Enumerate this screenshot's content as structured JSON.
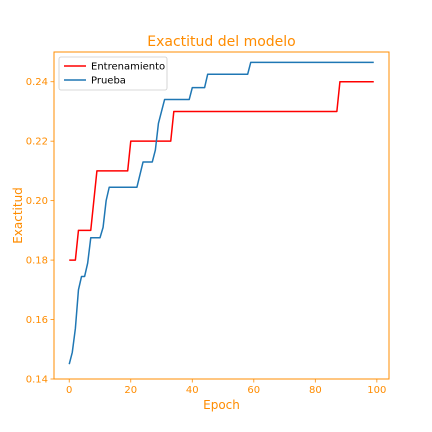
{
  "chart_data": {
    "type": "line",
    "title": "Exactitud del modelo",
    "xlabel": "Epoch",
    "ylabel": "Exactitud",
    "xlim": [
      -4.95,
      103.95
    ],
    "ylim": [
      0.14,
      0.25
    ],
    "xticks": [
      0,
      20,
      40,
      60,
      80,
      100
    ],
    "yticks": [
      0.14,
      0.16,
      0.18,
      0.2,
      0.22,
      0.24
    ],
    "ytick_labels": [
      "0.14",
      "0.16",
      "0.18",
      "0.20",
      "0.22",
      "0.24"
    ],
    "legend_position": "top-left",
    "accent_color": "#ff8c00",
    "series": [
      {
        "name": "Entrenamiento",
        "color": "#ff0000",
        "points": [
          [
            0,
            0.18
          ],
          [
            2,
            0.18
          ],
          [
            3,
            0.19
          ],
          [
            7,
            0.19
          ],
          [
            9,
            0.21
          ],
          [
            19,
            0.21
          ],
          [
            20,
            0.22
          ],
          [
            33,
            0.22
          ],
          [
            34,
            0.23
          ],
          [
            87,
            0.23
          ],
          [
            88,
            0.24
          ],
          [
            99,
            0.24
          ]
        ]
      },
      {
        "name": "Prueba",
        "color": "#1f77b4",
        "points": [
          [
            0,
            0.145
          ],
          [
            1,
            0.149
          ],
          [
            2,
            0.157
          ],
          [
            3,
            0.17
          ],
          [
            4,
            0.1745
          ],
          [
            5,
            0.1745
          ],
          [
            6,
            0.179
          ],
          [
            7,
            0.1875
          ],
          [
            10,
            0.1875
          ],
          [
            11,
            0.191
          ],
          [
            12,
            0.2
          ],
          [
            13,
            0.2045
          ],
          [
            22,
            0.2045
          ],
          [
            24,
            0.213
          ],
          [
            27,
            0.213
          ],
          [
            28,
            0.217
          ],
          [
            29,
            0.226
          ],
          [
            30,
            0.23
          ],
          [
            31,
            0.234
          ],
          [
            39,
            0.234
          ],
          [
            40,
            0.238
          ],
          [
            44,
            0.238
          ],
          [
            45,
            0.2425
          ],
          [
            58,
            0.2425
          ],
          [
            59,
            0.2465
          ],
          [
            99,
            0.2465
          ]
        ]
      }
    ]
  }
}
